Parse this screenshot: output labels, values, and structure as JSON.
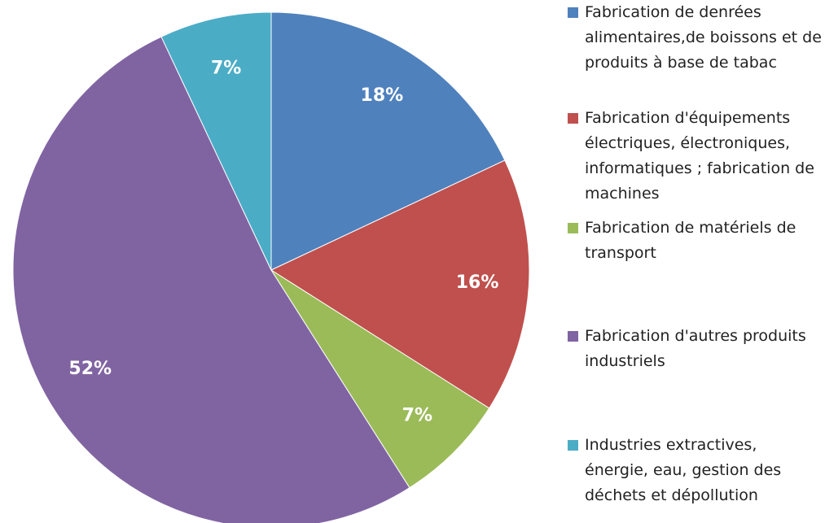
{
  "chart_data": {
    "type": "pie",
    "categories": [
      "Fabrication de denrées alimentaires,de boissons et de produits à base de tabac",
      "Fabrication d'équipements électriques, électroniques, informatiques ; fabrication de machines",
      "Fabrication de matériels de transport",
      "Fabrication d'autres produits industriels",
      "Industries extractives, énergie, eau, gestion des déchets et dépollution"
    ],
    "values": [
      18,
      16,
      7,
      52,
      7
    ],
    "value_labels": [
      "18%",
      "16%",
      "7%",
      "52%",
      "7%"
    ],
    "colors": [
      "#4f81bd",
      "#c0504d",
      "#9bbb59",
      "#8064a2",
      "#4bacc6"
    ]
  }
}
